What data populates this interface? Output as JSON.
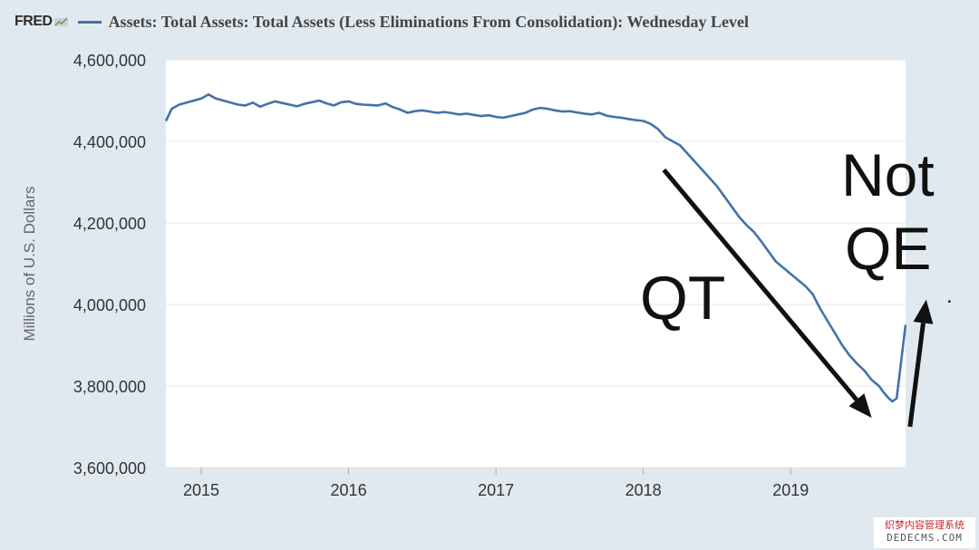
{
  "header": {
    "logo": "FRED",
    "title": "Assets: Total Assets: Total Assets (Less Eliminations From Consolidation): Wednesday Level"
  },
  "watermark": {
    "line1": "织梦内容管理系统",
    "line2": "DEDECMS.COM"
  },
  "colors": {
    "series": "#4572a7",
    "background": "#e1e9f0",
    "plot": "#ffffff",
    "grid": "#e6e6e6",
    "annotation": "#111111"
  },
  "chart_data": {
    "type": "line",
    "title": "Assets: Total Assets: Total Assets (Less Eliminations From Consolidation): Wednesday Level",
    "xlabel": "",
    "ylabel": "Millions of U.S. Dollars",
    "xlim": [
      2014.76,
      2019.78
    ],
    "ylim": [
      3600000,
      4600000
    ],
    "x_ticks": [
      2015,
      2016,
      2017,
      2018,
      2019
    ],
    "x_tick_labels": [
      "2015",
      "2016",
      "2017",
      "2018",
      "2019"
    ],
    "y_ticks": [
      3600000,
      3800000,
      4000000,
      4200000,
      4400000,
      4600000
    ],
    "y_tick_labels": [
      "3,600,000",
      "3,800,000",
      "4,000,000",
      "4,200,000",
      "4,400,000",
      "4,600,000"
    ],
    "grid": true,
    "series": [
      {
        "name": "Assets: Total Assets: Total Assets (Less Eliminations From Consolidation): Wednesday Level",
        "x": [
          2014.76,
          2014.8,
          2014.85,
          2014.9,
          2014.95,
          2015.0,
          2015.05,
          2015.1,
          2015.15,
          2015.2,
          2015.25,
          2015.3,
          2015.35,
          2015.4,
          2015.45,
          2015.5,
          2015.55,
          2015.6,
          2015.65,
          2015.7,
          2015.75,
          2015.8,
          2015.85,
          2015.9,
          2015.95,
          2016.0,
          2016.05,
          2016.1,
          2016.15,
          2016.2,
          2016.25,
          2016.3,
          2016.35,
          2016.4,
          2016.45,
          2016.5,
          2016.55,
          2016.6,
          2016.65,
          2016.7,
          2016.75,
          2016.8,
          2016.85,
          2016.9,
          2016.95,
          2017.0,
          2017.05,
          2017.1,
          2017.15,
          2017.2,
          2017.25,
          2017.3,
          2017.35,
          2017.4,
          2017.45,
          2017.5,
          2017.55,
          2017.6,
          2017.65,
          2017.7,
          2017.75,
          2017.8,
          2017.85,
          2017.9,
          2017.95,
          2018.0,
          2018.05,
          2018.1,
          2018.15,
          2018.2,
          2018.25,
          2018.3,
          2018.35,
          2018.4,
          2018.45,
          2018.5,
          2018.55,
          2018.6,
          2018.65,
          2018.7,
          2018.75,
          2018.8,
          2018.85,
          2018.9,
          2018.95,
          2019.0,
          2019.05,
          2019.1,
          2019.15,
          2019.2,
          2019.25,
          2019.3,
          2019.35,
          2019.4,
          2019.45,
          2019.5,
          2019.55,
          2019.6,
          2019.63,
          2019.66,
          2019.69,
          2019.72,
          2019.75,
          2019.78
        ],
        "values": [
          4450000,
          4480000,
          4490000,
          4495000,
          4500000,
          4505000,
          4515000,
          4505000,
          4500000,
          4495000,
          4490000,
          4488000,
          4495000,
          4485000,
          4492000,
          4498000,
          4494000,
          4490000,
          4486000,
          4492000,
          4496000,
          4500000,
          4493000,
          4488000,
          4496000,
          4498000,
          4492000,
          4490000,
          4489000,
          4488000,
          4493000,
          4484000,
          4478000,
          4470000,
          4474000,
          4476000,
          4473000,
          4470000,
          4472000,
          4469000,
          4466000,
          4468000,
          4465000,
          4462000,
          4464000,
          4460000,
          4458000,
          4462000,
          4466000,
          4470000,
          4478000,
          4482000,
          4480000,
          4476000,
          4473000,
          4474000,
          4471000,
          4468000,
          4466000,
          4470000,
          4463000,
          4460000,
          4458000,
          4455000,
          4452000,
          4450000,
          4443000,
          4430000,
          4410000,
          4400000,
          4390000,
          4370000,
          4350000,
          4330000,
          4310000,
          4290000,
          4265000,
          4240000,
          4215000,
          4195000,
          4178000,
          4155000,
          4130000,
          4105000,
          4090000,
          4075000,
          4060000,
          4045000,
          4025000,
          3990000,
          3960000,
          3930000,
          3900000,
          3875000,
          3855000,
          3838000,
          3815000,
          3800000,
          3785000,
          3772000,
          3762000,
          3770000,
          3860000,
          3950000
        ]
      }
    ],
    "annotations": [
      {
        "text": "QT",
        "arrow_from": [
          2018.14,
          4330000
        ],
        "arrow_to": [
          2019.55,
          3722000
        ]
      },
      {
        "text": "Not",
        "arrow_from": [
          2019.81,
          3700000
        ],
        "arrow_to": [
          2019.92,
          4012000
        ]
      },
      {
        "text": "QE"
      },
      {
        "text": "."
      }
    ]
  }
}
